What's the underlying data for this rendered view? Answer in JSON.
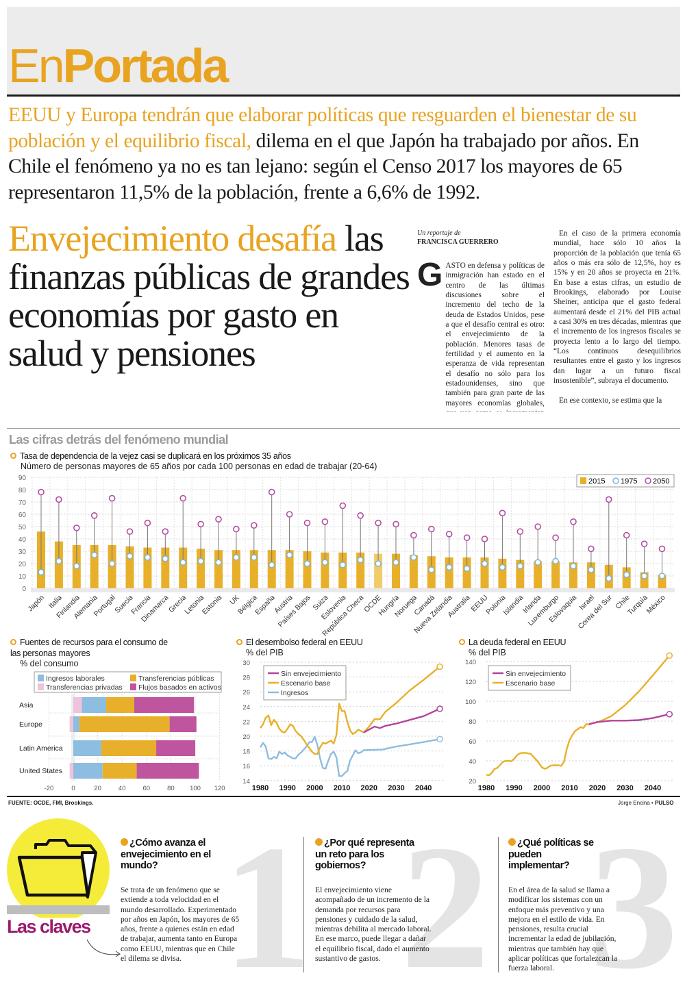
{
  "masthead": {
    "brand_light": "En",
    "brand_bold": "Portada"
  },
  "deck": {
    "highlight": "EEUU y Europa tendrán que elaborar políticas que resguarden el bienestar de su población y el equilibrio fiscal,",
    "rest": " dilema en el que Japón ha trabajado por años. En Chile el fenómeno ya no es tan lejano: según el Censo 2017 los mayores de 65 representaron 11,5% de la población, frente a 6,6% de 1992."
  },
  "headline": {
    "highlight": "Envejecimiento desafía",
    "rest": " las finanzas públicas de grandes economías por gasto en salud y pensiones"
  },
  "article": {
    "byline_pre": "Un reportaje de",
    "byline": "FRANCISCA GUERRERO",
    "dropcap": "G",
    "p1": "ASTO en defensa y políticas de inmigración han estado en el centro de las últimas discusiones sobre el incremento del techo de la deuda de Estados Unidos, pese a que el desafío central es otro: el envejecimiento de la población. Menores tasas de fertilidad y el aumento en la esperanza de vida representan el desafío no sólo para los estadounidenses, sino que también para gran parte de las mayores economías globales, que ven como se incrementan rápidamente los gastos en salud y pensiones, poniendo en riesgo el equilibrio de las finanzas públicas.",
    "p2": "En el caso de la primera economía mundial, hace sólo 10 años la proporción de la población que tenía 65 años o más era sólo de 12,5%, hoy es 15% y en 20 años se proyecta en 21%. En base a estas cifras, un estudio de Brookings, elaborado por Louise Sheiner, anticipa que el gasto federal aumentará desde el 21% del PIB actual a casi 30% en tres décadas, mientras que el incremento de los ingresos fiscales se proyecta lento a lo largo del tiempo. “Los continuos desequilibrios resultantes entre el gasto y los ingresos dan lugar a un futuro fiscal insostenible”, subraya el documento.",
    "p3": "En ese contexto, se estima que la"
  },
  "infographic": {
    "title": "Las cifras detrás del fenómeno mundial",
    "source": "FUENTE: OCDE, FMI, Brookings.",
    "credit_name": "Jorge Encina",
    "credit_sep": " • ",
    "credit_outlet": "PULSO"
  },
  "colors": {
    "accent": "#e8a320",
    "bar_2015": "#e8b02a",
    "bar_ocde": "#f1cc6a",
    "marker_1975": "#7fb4dc",
    "marker_2050": "#b0509e",
    "sin_envejecimiento": "#b0449e",
    "ingresos": "#8dbde0",
    "claves": "#9b1b6e",
    "claves_circle": "#f5ec3a"
  },
  "chart_data": [
    {
      "type": "bar",
      "title": "Tasa de dependencia de la vejez casi se duplicará en los próximos 35 años",
      "subtitle": "Número de personas mayores de 65 años por cada 100 personas en edad de trabajar (20-64)",
      "ylim": [
        0,
        90
      ],
      "yticks": [
        0,
        10,
        20,
        30,
        40,
        50,
        60,
        70,
        80,
        90
      ],
      "grid": true,
      "legend_position": "top-right",
      "categories": [
        "Japón",
        "Italia",
        "Finlandia",
        "Alemania",
        "Portugal",
        "Suecia",
        "Francia",
        "Dinamarca",
        "Grecia",
        "Letonia",
        "Estonia",
        "UK",
        "Bélgica",
        "España",
        "Austria",
        "Países Bajos",
        "Suiza",
        "Eslovenia",
        "República Checa",
        "OCDE",
        "Hungría",
        "Noruega",
        "Canadá",
        "Nueva Zelandia",
        "Australia",
        "EEUU",
        "Polonia",
        "Islandia",
        "Irlanda",
        "Luxemburgo",
        "Eslovaquia",
        "Israel",
        "Corea del Sur",
        "Chile",
        "Turquía",
        "México"
      ],
      "series": [
        {
          "name": "2015",
          "mark": "bar",
          "values": [
            46,
            38,
            35,
            35,
            35,
            34,
            33,
            33,
            33,
            32,
            31,
            31,
            31,
            31,
            31,
            30,
            29,
            29,
            29,
            28,
            28,
            27,
            26,
            25,
            25,
            25,
            24,
            23,
            22,
            22,
            21,
            21,
            19,
            17,
            13,
            11
          ]
        },
        {
          "name": "1975",
          "mark": "circle",
          "values": [
            13,
            22,
            18,
            27,
            20,
            26,
            25,
            24,
            21,
            22,
            21,
            25,
            25,
            19,
            27,
            20,
            21,
            19,
            23,
            20,
            21,
            25,
            15,
            17,
            16,
            20,
            17,
            18,
            21,
            22,
            18,
            15,
            8,
            11,
            10,
            10
          ]
        },
        {
          "name": "2050",
          "mark": "circle",
          "values": [
            78,
            72,
            49,
            59,
            73,
            46,
            53,
            46,
            73,
            52,
            56,
            48,
            51,
            78,
            60,
            53,
            54,
            67,
            59,
            53,
            52,
            43,
            48,
            44,
            41,
            40,
            61,
            46,
            50,
            41,
            54,
            32,
            72,
            43,
            36,
            32
          ]
        }
      ]
    },
    {
      "type": "bar",
      "orientation": "horizontal-stacked",
      "title": "Fuentes de recursos para el consumo de las personas mayores",
      "subtitle": "% del consumo",
      "xlim": [
        -20,
        120
      ],
      "xticks": [
        -20,
        0,
        20,
        40,
        60,
        80,
        100,
        120
      ],
      "legend_position": "top",
      "categories": [
        "Asia",
        "Europe",
        "Latin America",
        "United States"
      ],
      "series": [
        {
          "name": "Ingresos laborales",
          "color": "#8dbde0",
          "values": [
            20,
            5,
            23,
            24
          ]
        },
        {
          "name": "Transferencias públicas",
          "color": "#e8b02a",
          "values": [
            23,
            74,
            45,
            28
          ]
        },
        {
          "name": "Transferencias privadas",
          "color": "#efc3dc",
          "values": [
            7,
            -3,
            0,
            -3
          ]
        },
        {
          "name": "Flujos basados en activos",
          "color": "#c0559f",
          "values": [
            49,
            22,
            32,
            51
          ]
        }
      ]
    },
    {
      "type": "line",
      "title": "El desembolso federal en EEUU",
      "ylabel": "% del PIB",
      "ylim": [
        14,
        30
      ],
      "yticks": [
        14,
        16,
        18,
        20,
        22,
        24,
        26,
        28,
        30
      ],
      "xticks": [
        1980,
        1990,
        2000,
        2010,
        2020,
        2030,
        2040
      ],
      "grid": true,
      "legend_position": "top-left",
      "series": [
        {
          "name": "Sin envejecimiento",
          "color": "#b0449e",
          "x": [
            2018,
            2020,
            2022,
            2024,
            2026,
            2030,
            2035,
            2040,
            2046
          ],
          "y": [
            20.5,
            20.9,
            21.3,
            21.1,
            21.4,
            21.7,
            22.2,
            22.7,
            23.7
          ]
        },
        {
          "name": "Escenario base",
          "color": "#e8b02a",
          "x": [
            1980,
            1981,
            1982,
            1983,
            1984,
            1985,
            1986,
            1987,
            1988,
            1989,
            1990,
            1991,
            1992,
            1993,
            1994,
            1995,
            1996,
            1997,
            1998,
            1999,
            2000,
            2001,
            2002,
            2003,
            2004,
            2005,
            2006,
            2007,
            2008,
            2009,
            2010,
            2011,
            2012,
            2013,
            2014,
            2015,
            2016,
            2017,
            2018,
            2020,
            2022,
            2024,
            2026,
            2030,
            2035,
            2040,
            2046
          ],
          "y": [
            21.1,
            21.6,
            22.5,
            22.8,
            21.5,
            22.2,
            21.8,
            21.0,
            20.6,
            20.5,
            21.0,
            21.6,
            21.4,
            20.7,
            20.3,
            20.0,
            19.5,
            18.9,
            18.4,
            17.9,
            17.6,
            17.6,
            18.5,
            19.1,
            19.0,
            19.2,
            19.4,
            19.0,
            20.2,
            24.4,
            23.4,
            23.4,
            22.0,
            20.8,
            20.3,
            20.5,
            20.9,
            20.7,
            20.5,
            21.3,
            22.3,
            22.3,
            23.3,
            24.5,
            26.2,
            27.6,
            29.4
          ]
        },
        {
          "name": "Ingresos",
          "color": "#8dbde0",
          "x": [
            1980,
            1981,
            1982,
            1983,
            1984,
            1985,
            1986,
            1987,
            1988,
            1989,
            1990,
            1991,
            1992,
            1993,
            1994,
            1995,
            1996,
            1997,
            1998,
            1999,
            2000,
            2001,
            2002,
            2003,
            2004,
            2005,
            2006,
            2007,
            2008,
            2009,
            2010,
            2011,
            2012,
            2013,
            2014,
            2015,
            2016,
            2017,
            2018,
            2025,
            2030,
            2035,
            2040,
            2046
          ],
          "y": [
            18.5,
            19.1,
            18.6,
            17.0,
            16.9,
            17.2,
            17.0,
            17.9,
            17.6,
            17.8,
            17.4,
            17.2,
            17.0,
            17.0,
            17.5,
            17.8,
            18.2,
            18.6,
            19.2,
            19.2,
            19.9,
            18.8,
            17.0,
            15.7,
            15.6,
            16.7,
            17.6,
            17.9,
            17.1,
            14.6,
            14.6,
            15.0,
            15.3,
            16.7,
            17.4,
            18.1,
            17.7,
            17.8,
            18.1,
            18.2,
            18.6,
            18.9,
            19.2,
            19.6
          ]
        }
      ]
    },
    {
      "type": "line",
      "title": "La deuda federal en EEUU",
      "ylabel": "% del PIB",
      "ylim": [
        20,
        140
      ],
      "yticks": [
        20,
        40,
        60,
        80,
        100,
        120,
        140
      ],
      "xticks": [
        1980,
        1990,
        2000,
        2010,
        2020,
        2030,
        2040
      ],
      "grid": true,
      "legend_position": "top-left",
      "series": [
        {
          "name": "Sin envejecimiento",
          "color": "#b0449e",
          "x": [
            2017,
            2020,
            2025,
            2030,
            2035,
            2040,
            2046
          ],
          "y": [
            77,
            79,
            80.5,
            80.5,
            81,
            83,
            87
          ]
        },
        {
          "name": "Escenario base",
          "color": "#e8b02a",
          "x": [
            1980,
            1981,
            1982,
            1983,
            1984,
            1985,
            1986,
            1987,
            1988,
            1989,
            1990,
            1991,
            1992,
            1993,
            1994,
            1995,
            1996,
            1997,
            1998,
            1999,
            2000,
            2001,
            2002,
            2003,
            2004,
            2005,
            2006,
            2007,
            2008,
            2009,
            2010,
            2011,
            2012,
            2013,
            2014,
            2015,
            2016,
            2017,
            2018,
            2020,
            2022,
            2025,
            2030,
            2035,
            2040,
            2046
          ],
          "y": [
            26,
            25.5,
            28,
            32,
            33,
            36,
            39,
            40,
            40,
            39.5,
            42,
            45.5,
            47.5,
            48,
            48,
            47.5,
            47,
            44,
            41,
            37.5,
            33.5,
            32,
            33,
            35,
            35.5,
            35.5,
            35.5,
            35,
            39,
            52,
            61,
            66,
            70,
            72,
            74,
            73,
            77,
            76.5,
            77.5,
            79,
            81,
            85,
            96,
            110,
            126,
            146
          ]
        }
      ]
    }
  ],
  "claves": {
    "label": "Las claves",
    "items": [
      {
        "num": "1",
        "question": "¿Cómo avanza el envejecimiento en el mundo?",
        "body": "Se trata de un fenómeno que se extiende a toda velocidad en el mundo desarrollado. Experimentado por años en Japón, los mayores de 65 años, frente a quienes están en edad de trabajar, aumenta tanto en Europa como EEUU, mientras que en Chile el dilema se divisa."
      },
      {
        "num": "2",
        "question": "¿Por qué representa un reto para los gobiernos?",
        "body": "El envejecimiento viene acompañado de un incremento de la demanda por recursos para pensiones y cuidado de la salud, mientras debilita al mercado laboral. En ese marco, puede llegar a dañar el equilibrio fiscal, dado el aumento sustantivo de gastos."
      },
      {
        "num": "3",
        "question": "¿Qué políticas se pueden implementar?",
        "body": "En el área de la salud se llama a modificar los sistemas con un enfoque más preventivo y una mejora en el estilo de vida. En pensiones, resulta crucial incrementar la edad de jubilación, mientras que también hay que aplicar políticas que fortalezcan la fuerza laboral."
      }
    ]
  }
}
